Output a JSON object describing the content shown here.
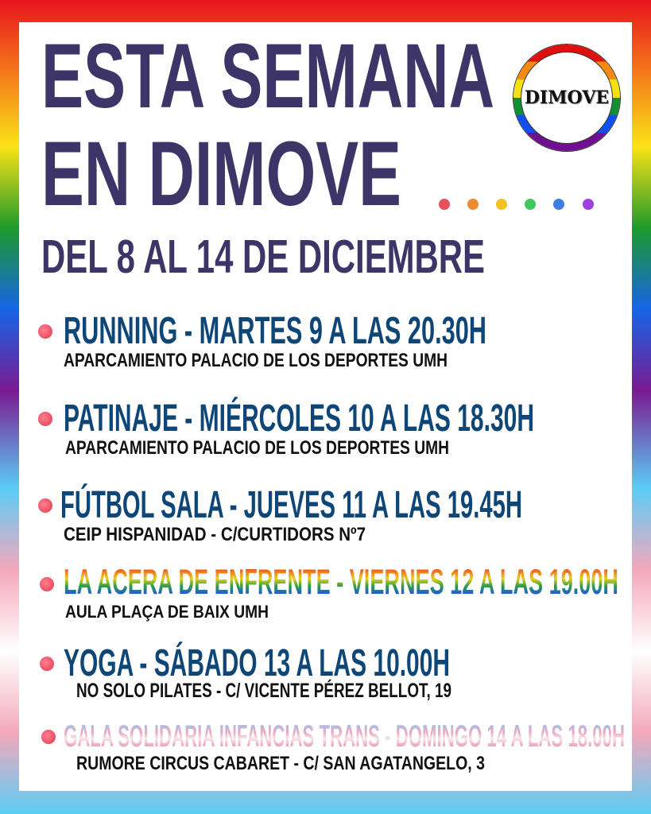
{
  "poster": {
    "title_line1": "ESTA SEMANA",
    "title_line2": "EN DIMOVE",
    "dates": "DEL 8 AL 14 DE DICIEMBRE",
    "logo_text": "DIMOVE",
    "dot_colors": [
      "#e8505b",
      "#f08a30",
      "#f5c020",
      "#3ec95a",
      "#3d7fe0",
      "#a040e0"
    ],
    "colors": {
      "title": "#3d3568",
      "event_heading": "#0d4677",
      "bullet": "#e8505b"
    }
  },
  "events": [
    {
      "heading": "RUNNING - MARTES 9 A LAS 20.30H",
      "location": "APARCAMIENTO PALACIO DE LOS DEPORTES UMH",
      "style": "solid"
    },
    {
      "heading": "PATINAJE - MIÉRCOLES 10 A LAS 18.30H",
      "location": "APARCAMIENTO PALACIO DE LOS DEPORTES UMH",
      "style": "solid"
    },
    {
      "heading": "FÚTBOL SALA - JUEVES 11 A LAS 19.45H",
      "location": "CEIP HISPANIDAD - C/CURTIDORS Nº7",
      "style": "solid"
    },
    {
      "heading": "LA ACERA DE ENFRENTE - VIERNES 12 A LAS 19.00H",
      "location": "AULA PLAÇA DE BAIX UMH",
      "style": "rainbow"
    },
    {
      "heading": "YOGA - SÁBADO 13 A LAS 10.00H",
      "location": "NO SOLO PILATES - C/ VICENTE PÉREZ BELLOT, 19",
      "style": "solid"
    },
    {
      "heading": "GALA SOLIDARIA INFANCIAS TRANS - DOMINGO 14 A LAS 18.00H",
      "location": "RUMORE CIRCUS CABARET - C/ SAN AGATANGELO, 3",
      "style": "trans"
    }
  ]
}
